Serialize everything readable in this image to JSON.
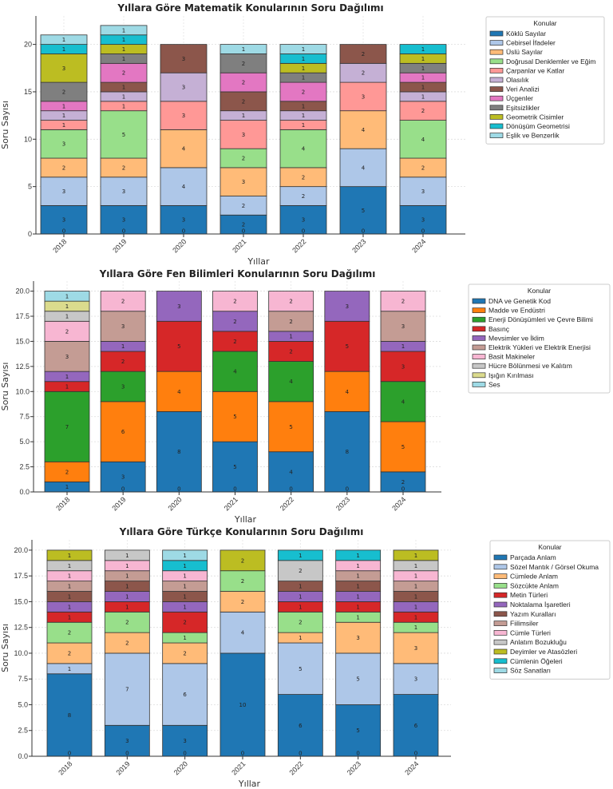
{
  "chart_data": [
    {
      "type": "bar",
      "stacked": true,
      "title": "Yıllara Göre Matematik Konularının Soru Dağılımı",
      "xlabel": "Yıllar",
      "ylabel": "Soru Sayısı",
      "ylim": [
        0,
        23
      ],
      "yticks": [
        "0",
        "5",
        "10",
        "15",
        "20"
      ],
      "grid": true,
      "legend_title": "Konular",
      "legend_position": "right",
      "categories": [
        "2018",
        "2019",
        "2020",
        "2021",
        "2022",
        "2023",
        "2024"
      ],
      "series": [
        {
          "name": "Köklü Sayılar",
          "color": "#1f77b4",
          "values": [
            3,
            3,
            3,
            2,
            3,
            5,
            3
          ]
        },
        {
          "name": "Cebirsel İfadeler",
          "color": "#aec7e8",
          "values": [
            3,
            3,
            4,
            2,
            2,
            4,
            3
          ]
        },
        {
          "name": "Üslü Sayılar",
          "color": "#ffbb78",
          "values": [
            2,
            2,
            4,
            3,
            2,
            4,
            2
          ]
        },
        {
          "name": "Doğrusal Denklemler ve Eğim",
          "color": "#98df8a",
          "values": [
            3,
            5,
            0,
            2,
            4,
            0,
            4
          ]
        },
        {
          "name": "Çarpanlar ve Katlar",
          "color": "#ff9896",
          "values": [
            1,
            1,
            3,
            3,
            1,
            3,
            2
          ]
        },
        {
          "name": "Olasılık",
          "color": "#c5b0d5",
          "values": [
            1,
            1,
            3,
            1,
            1,
            2,
            1
          ]
        },
        {
          "name": "Veri Analizi",
          "color": "#8c564b",
          "values": [
            0,
            1,
            3,
            2,
            1,
            2,
            1
          ]
        },
        {
          "name": "Üçgenler",
          "color": "#e377c2",
          "values": [
            1,
            2,
            0,
            2,
            2,
            0,
            1
          ]
        },
        {
          "name": "Eşitsizlikler",
          "color": "#7f7f7f",
          "values": [
            2,
            1,
            0,
            2,
            1,
            0,
            1
          ]
        },
        {
          "name": "Geometrik Cisimler",
          "color": "#bcbd22",
          "values": [
            3,
            1,
            0,
            0,
            1,
            0,
            1
          ]
        },
        {
          "name": "Dönüşüm Geometrisi",
          "color": "#17becf",
          "values": [
            1,
            1,
            0,
            0,
            1,
            0,
            1
          ]
        },
        {
          "name": "Eşlik ve Benzerlik",
          "color": "#9edae5",
          "values": [
            1,
            1,
            0,
            1,
            1,
            0,
            0
          ]
        }
      ]
    },
    {
      "type": "bar",
      "stacked": true,
      "title": "Yıllara Göre Fen Bilimleri Konularının Soru Dağılımı",
      "xlabel": "Yıllar",
      "ylabel": "Soru Sayısı",
      "ylim": [
        0,
        21
      ],
      "yticks": [
        "0.0",
        "2.5",
        "5.0",
        "7.5",
        "10.0",
        "12.5",
        "15.0",
        "17.5",
        "20.0"
      ],
      "grid": true,
      "legend_title": "Konular",
      "legend_position": "right",
      "categories": [
        "2018",
        "2019",
        "2020",
        "2021",
        "2022",
        "2023",
        "2024"
      ],
      "series": [
        {
          "name": "DNA ve Genetik Kod",
          "color": "#1f77b4",
          "values": [
            1,
            3,
            8,
            5,
            4,
            8,
            2
          ]
        },
        {
          "name": "Madde ve Endüstri",
          "color": "#ff7f0e",
          "values": [
            2,
            6,
            4,
            5,
            5,
            4,
            5
          ]
        },
        {
          "name": "Enerji Dönüşümleri ve Çevre Bilimi",
          "color": "#2ca02c",
          "values": [
            7,
            3,
            0,
            4,
            4,
            0,
            4
          ]
        },
        {
          "name": "Basınç",
          "color": "#d62728",
          "values": [
            1,
            2,
            5,
            2,
            2,
            5,
            3
          ]
        },
        {
          "name": "Mevsimler ve İklim",
          "color": "#9467bd",
          "values": [
            1,
            1,
            3,
            2,
            1,
            3,
            1
          ]
        },
        {
          "name": "Elektrik Yükleri ve Elektrik Enerjisi",
          "color": "#c49c94",
          "values": [
            3,
            3,
            0,
            0,
            2,
            0,
            3
          ]
        },
        {
          "name": "Basit Makineler",
          "color": "#f7b6d2",
          "values": [
            2,
            2,
            0,
            2,
            2,
            0,
            2
          ]
        },
        {
          "name": "Hücre Bölünmesi ve Kalıtım",
          "color": "#c7c7c7",
          "values": [
            1,
            0,
            0,
            0,
            0,
            0,
            0
          ]
        },
        {
          "name": "Işığın Kırılması",
          "color": "#dbdb8d",
          "values": [
            1,
            0,
            0,
            0,
            0,
            0,
            0
          ]
        },
        {
          "name": "Ses",
          "color": "#9edae5",
          "values": [
            1,
            0,
            0,
            0,
            0,
            0,
            0
          ]
        }
      ]
    },
    {
      "type": "bar",
      "stacked": true,
      "title": "Yıllara Göre Türkçe Konularının Soru Dağılımı",
      "xlabel": "Yıllar",
      "ylabel": "Soru Sayısı",
      "ylim": [
        0,
        21
      ],
      "yticks": [
        "0.0",
        "2.5",
        "5.0",
        "7.5",
        "10.0",
        "12.5",
        "15.0",
        "17.5",
        "20.0"
      ],
      "grid": true,
      "legend_title": "Konular",
      "legend_position": "right",
      "categories": [
        "2018",
        "2019",
        "2020",
        "2021",
        "2022",
        "2023",
        "2024"
      ],
      "series": [
        {
          "name": "Parçada Anlam",
          "color": "#1f77b4",
          "values": [
            8,
            3,
            3,
            10,
            6,
            5,
            6
          ]
        },
        {
          "name": "Sözel Mantık / Görsel Okuma",
          "color": "#aec7e8",
          "values": [
            1,
            7,
            6,
            4,
            5,
            5,
            3
          ]
        },
        {
          "name": "Cümlede Anlam",
          "color": "#ffbb78",
          "values": [
            2,
            2,
            2,
            2,
            1,
            3,
            3
          ]
        },
        {
          "name": "Sözcükte Anlam",
          "color": "#98df8a",
          "values": [
            2,
            2,
            1,
            2,
            2,
            1,
            1
          ]
        },
        {
          "name": "Metin Türleri",
          "color": "#d62728",
          "values": [
            1,
            1,
            2,
            0,
            1,
            1,
            1
          ]
        },
        {
          "name": "Noktalama İşaretleri",
          "color": "#9467bd",
          "values": [
            1,
            1,
            1,
            0,
            1,
            1,
            1
          ]
        },
        {
          "name": "Yazım Kuralları",
          "color": "#8c564b",
          "values": [
            1,
            1,
            1,
            0,
            1,
            1,
            1
          ]
        },
        {
          "name": "Fiilimsiler",
          "color": "#c49c94",
          "values": [
            1,
            1,
            1,
            0,
            0,
            1,
            1
          ]
        },
        {
          "name": "Cümle Türleri",
          "color": "#f7b6d2",
          "values": [
            1,
            1,
            1,
            0,
            0,
            1,
            1
          ]
        },
        {
          "name": "Anlatım Bozukluğu",
          "color": "#c7c7c7",
          "values": [
            1,
            1,
            0,
            0,
            2,
            0,
            1
          ]
        },
        {
          "name": "Deyimler ve Atasözleri",
          "color": "#bcbd22",
          "values": [
            1,
            0,
            0,
            2,
            0,
            0,
            1
          ]
        },
        {
          "name": "Cümlenin Öğeleri",
          "color": "#17becf",
          "values": [
            0,
            0,
            1,
            0,
            1,
            1,
            0
          ]
        },
        {
          "name": "Söz Sanatları",
          "color": "#9edae5",
          "values": [
            0,
            0,
            1,
            0,
            0,
            0,
            0
          ]
        }
      ]
    }
  ]
}
